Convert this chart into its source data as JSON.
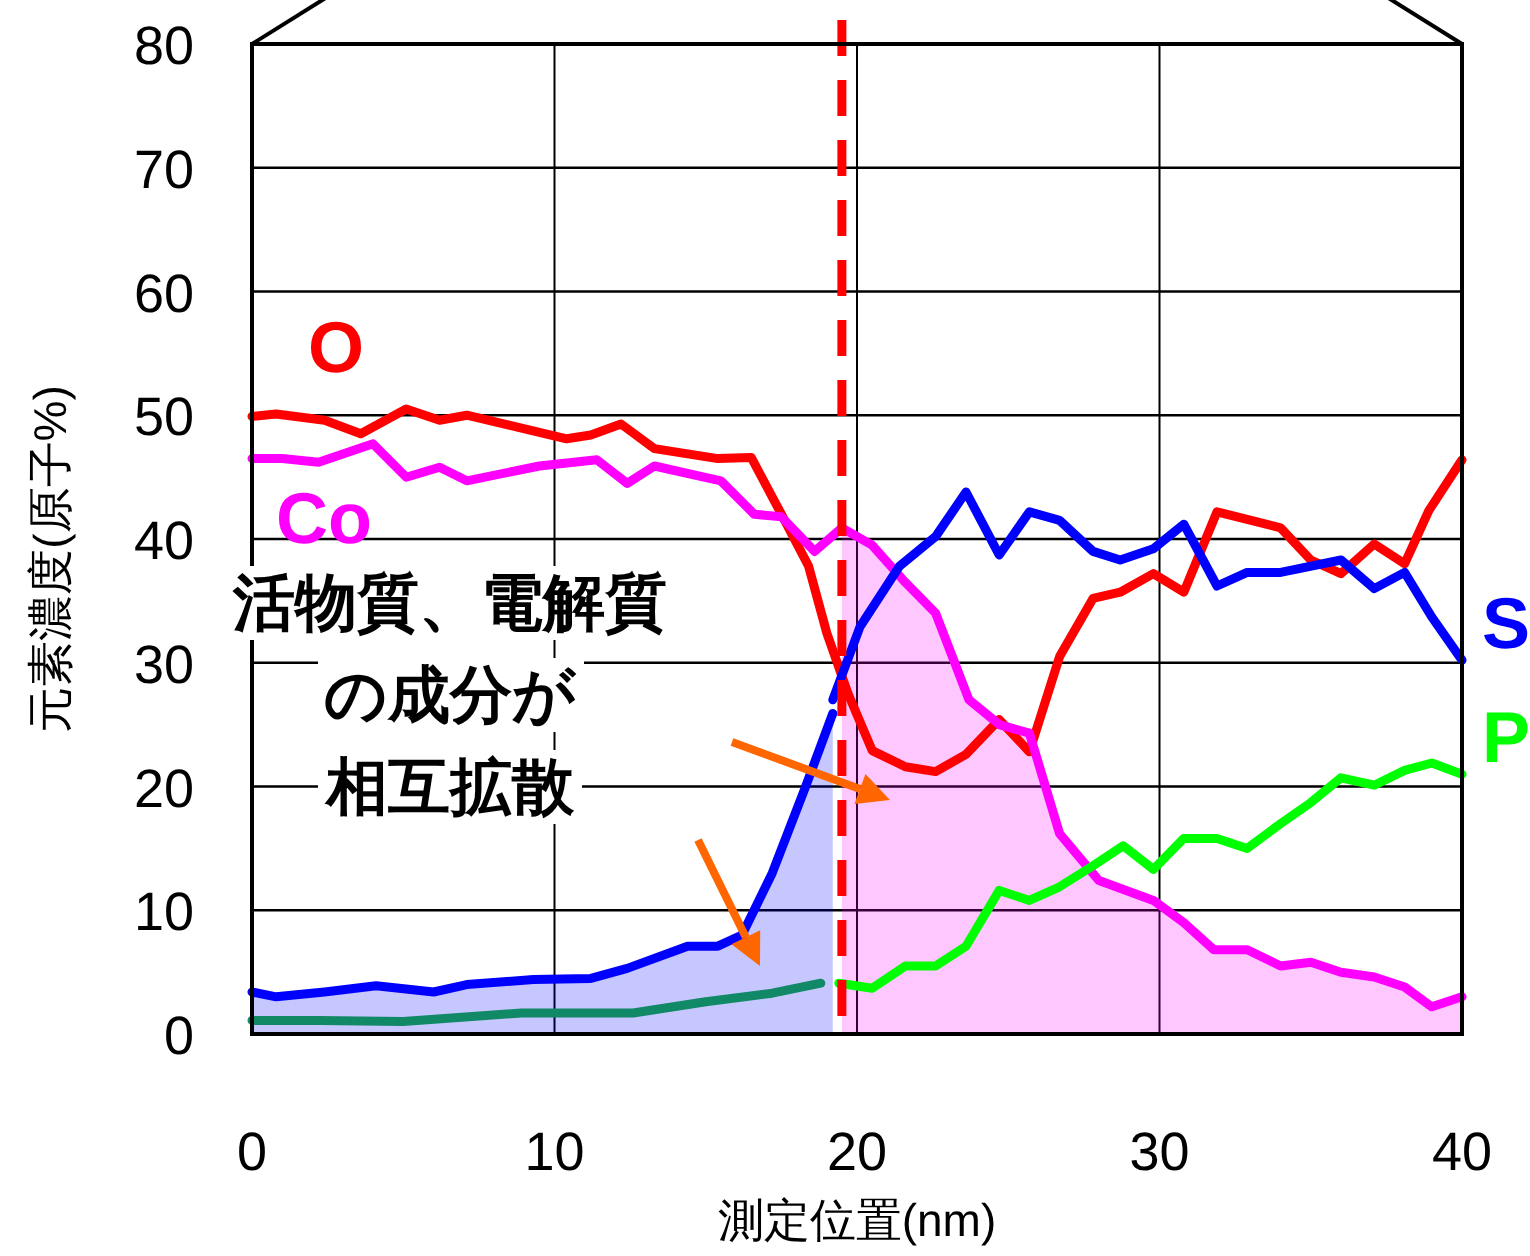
{
  "chart_data": {
    "type": "line",
    "xlabel": "測定位置(nm)",
    "ylabel": "元素濃度(原子%)",
    "xlim": [
      0,
      40
    ],
    "ylim": [
      0,
      80
    ],
    "xticks": [
      0,
      10,
      20,
      30,
      40
    ],
    "yticks": [
      0,
      10,
      20,
      30,
      40,
      50,
      60,
      70,
      80
    ],
    "grid": true,
    "legend": false,
    "series": [
      {
        "name": "O",
        "color": "#ff0000",
        "x": [
          0,
          0.8,
          2.4,
          3.6,
          5.1,
          6.2,
          7.1,
          10.4,
          11.2,
          12.2,
          13.3,
          15.4,
          16.5,
          17.5,
          18.4,
          19,
          19.7,
          20.5,
          21.6,
          22.6,
          23.6,
          24.7,
          25.7,
          26.7,
          27.8,
          28.7,
          29.8,
          30.8,
          31.9,
          34,
          35,
          36,
          37.1,
          38.1,
          38.9,
          40
        ],
        "values": [
          49.9,
          50.1,
          49.6,
          48.5,
          50.5,
          49.6,
          50,
          48.1,
          48.4,
          49.3,
          47.3,
          46.5,
          46.6,
          42,
          37.8,
          32.4,
          27.5,
          22.9,
          21.6,
          21.2,
          22.6,
          25.4,
          22.8,
          30.5,
          35.2,
          35.7,
          37.2,
          35.7,
          42.2,
          40.9,
          38.3,
          37.2,
          39.6,
          38,
          42.3,
          46.4
        ]
      },
      {
        "name": "Co",
        "type": "line",
        "color": "#ff00ff",
        "x": [
          0,
          1,
          2.2,
          4,
          5.1,
          6.2,
          7.1,
          9.5,
          11.4,
          12.4,
          13.3,
          15.5,
          16.6,
          17.5,
          18.6,
          19.5
        ],
        "values": [
          46.5,
          46.5,
          46.2,
          47.7,
          45,
          45.8,
          44.7,
          45.9,
          46.4,
          44.5,
          45.9,
          44.7,
          42,
          41.8,
          39,
          40.9
        ]
      },
      {
        "type": "area",
        "color": "#ff00ff",
        "x": [
          19.5,
          20.5,
          21.6,
          22.6,
          23.7,
          24.7,
          25.7,
          26.7,
          28,
          29.8,
          30.8,
          31.8,
          32.9,
          34,
          35,
          36,
          37.1,
          38.1,
          39,
          40
        ],
        "values": [
          40.9,
          39.5,
          36.5,
          34,
          27,
          25,
          24.3,
          16.2,
          12.4,
          10.8,
          9,
          6.8,
          6.8,
          5.5,
          5.8,
          5,
          4.6,
          3.8,
          2.2,
          3
        ]
      },
      {
        "type": "area",
        "color": "#0000ff",
        "x": [
          0,
          0.8,
          2.4,
          4.1,
          6,
          7.1,
          9.3,
          11.2,
          12.4,
          14.4,
          15.4,
          16.2,
          17.2,
          18.3,
          19.2
        ],
        "values": [
          3.4,
          3,
          3.4,
          3.9,
          3.4,
          4,
          4.4,
          4.5,
          5.3,
          7.1,
          7.1,
          8,
          13,
          20,
          25.9
        ]
      },
      {
        "name": "S",
        "type": "line",
        "color": "#0000ff",
        "x": [
          19.2,
          20.1,
          21.4,
          22.6,
          23.6,
          24.7,
          25.7,
          26.7,
          27.8,
          28.7,
          29.8,
          30.8,
          31.9,
          32.9,
          34,
          36,
          37.1,
          38.1,
          39,
          40
        ],
        "values": [
          27,
          32.9,
          37.8,
          40.2,
          43.8,
          38.7,
          42.2,
          41.5,
          39,
          38.3,
          39.2,
          41.2,
          36.2,
          37.3,
          37.3,
          38.3,
          36,
          37.3,
          33.7,
          30.2
        ]
      },
      {
        "type": "line",
        "color": "#118866",
        "x": [
          0,
          2.2,
          5,
          8.9,
          12.6,
          15,
          17.2,
          18.8
        ],
        "values": [
          1.1,
          1.1,
          1,
          1.7,
          1.7,
          2.6,
          3.3,
          4.1
        ]
      },
      {
        "name": "P",
        "type": "line",
        "color": "#00ff00",
        "x": [
          19.4,
          20.5,
          21.6,
          22.6,
          23.6,
          24.7,
          25.7,
          26.7,
          27.8,
          28.8,
          29.8,
          30.8,
          31.9,
          32.9,
          34,
          35,
          36,
          37.1,
          38.1,
          39,
          40
        ],
        "values": [
          4.1,
          3.7,
          5.5,
          5.5,
          7.1,
          11.6,
          10.8,
          11.9,
          13.6,
          15.2,
          13.3,
          15.8,
          15.8,
          15,
          17,
          18.7,
          20.7,
          20.1,
          21.3,
          21.9,
          21
        ]
      }
    ],
    "ref_lines": [
      {
        "axis": "x",
        "value": 19.5,
        "color": "#ff0000",
        "line_style": "dashed"
      }
    ],
    "annotations": [
      "活物質、電解質",
      "の成分が",
      "相互拡散"
    ]
  }
}
